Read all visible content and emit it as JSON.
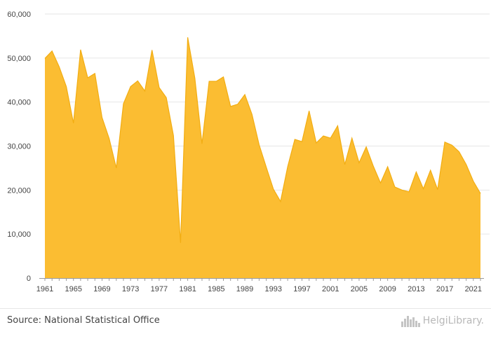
{
  "chart_data": {
    "type": "area",
    "title": "",
    "xlabel": "",
    "ylabel": "",
    "x": [
      1961,
      1962,
      1963,
      1964,
      1965,
      1966,
      1967,
      1968,
      1969,
      1970,
      1971,
      1972,
      1973,
      1974,
      1975,
      1976,
      1977,
      1978,
      1979,
      1980,
      1981,
      1982,
      1983,
      1984,
      1985,
      1986,
      1987,
      1988,
      1989,
      1990,
      1991,
      1992,
      1993,
      1994,
      1995,
      1996,
      1997,
      1998,
      1999,
      2000,
      2001,
      2002,
      2003,
      2004,
      2005,
      2006,
      2007,
      2008,
      2009,
      2010,
      2011,
      2012,
      2013,
      2014,
      2015,
      2016,
      2017,
      2018,
      2019,
      2020,
      2021,
      2022
    ],
    "series": [
      {
        "values": [
          49900,
          51600,
          48000,
          43500,
          35200,
          51900,
          45500,
          46500,
          36500,
          31700,
          25000,
          39600,
          43500,
          44800,
          42500,
          51800,
          43300,
          41000,
          32400,
          8000,
          54700,
          45400,
          30500,
          44700,
          44700,
          45700,
          39000,
          39500,
          41700,
          37200,
          30300,
          25200,
          20200,
          17400,
          25300,
          31500,
          31000,
          38000,
          30700,
          32300,
          31800,
          34600,
          25800,
          31800,
          26200,
          29800,
          25400,
          21600,
          25300,
          20700,
          20000,
          19600,
          24100,
          20300,
          24500,
          20100,
          30900,
          30200,
          28700,
          25800,
          22000,
          19200
        ]
      }
    ],
    "xticks": [
      "1961",
      "1965",
      "1969",
      "1973",
      "1977",
      "1981",
      "1985",
      "1989",
      "1993",
      "1997",
      "2001",
      "2005",
      "2009",
      "2013",
      "2017",
      "2021"
    ],
    "yticks": [
      "0",
      "10,000",
      "20,000",
      "30,000",
      "40,000",
      "50,000",
      "60,000"
    ],
    "ylim": [
      0,
      60000
    ],
    "xlim": [
      1961,
      2022
    ],
    "grid": true,
    "legend": "none",
    "colors": {
      "fill": "#fbbd32",
      "line": "#f2ad12",
      "grid": "#e6e6e6",
      "axis": "#9a9a9a"
    }
  },
  "footer": {
    "source": "Source: National Statistical Office",
    "brand": "HelgiLibrary."
  },
  "icons": {
    "brand_logo": "skyline-logo-icon"
  }
}
